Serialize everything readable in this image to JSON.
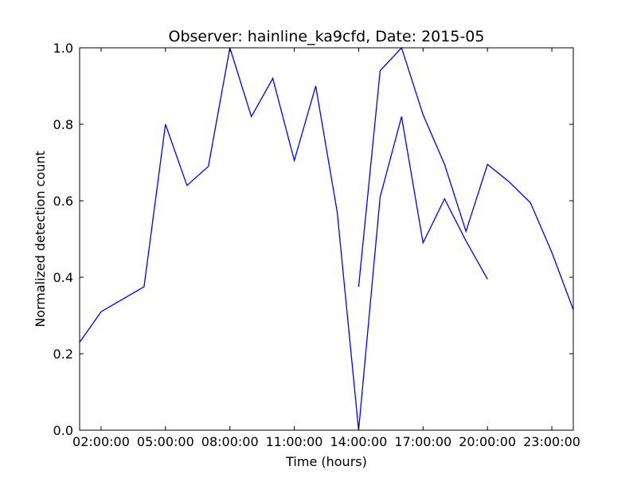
{
  "chart_data": {
    "type": "line",
    "title": "Observer: hainline_ka9cfd, Date: 2015-05",
    "xlabel": "Time (hours)",
    "ylabel": "Normalized detection count",
    "xlim": [
      1,
      24
    ],
    "ylim": [
      0,
      1
    ],
    "grid": false,
    "x_ticks": [
      {
        "value": 2,
        "label": "02:00:00"
      },
      {
        "value": 5,
        "label": "05:00:00"
      },
      {
        "value": 8,
        "label": "08:00:00"
      },
      {
        "value": 11,
        "label": "11:00:00"
      },
      {
        "value": 14,
        "label": "14:00:00"
      },
      {
        "value": 17,
        "label": "17:00:00"
      },
      {
        "value": 20,
        "label": "20:00:00"
      },
      {
        "value": 23,
        "label": "23:00:00"
      }
    ],
    "y_ticks": [
      {
        "value": 0,
        "label": "0.0"
      },
      {
        "value": 0.2,
        "label": "0.2"
      },
      {
        "value": 0.4,
        "label": "0.4"
      },
      {
        "value": 0.6,
        "label": "0.6"
      },
      {
        "value": 0.8,
        "label": "0.8"
      },
      {
        "value": 1.0,
        "label": "1.0"
      }
    ],
    "series": [
      {
        "color": "#0000ff",
        "x": [
          1,
          2,
          4,
          5,
          6,
          7,
          8,
          9,
          10,
          11,
          12,
          13,
          14,
          15,
          16,
          17,
          18,
          19,
          20,
          21,
          22,
          23,
          24
        ],
        "y": [
          0.23,
          0.31,
          0.375,
          0.8,
          0.64,
          0.69,
          1.0,
          0.82,
          0.92,
          0.705,
          0.9,
          0.57,
          0.0,
          0.61,
          0.82,
          0.49,
          0.605,
          0.495,
          0.395,
          null,
          null,
          null,
          null
        ]
      },
      {
        "color": "#0000ff",
        "x": [
          14,
          15,
          16,
          17,
          18,
          19,
          20,
          21,
          22,
          23,
          24
        ],
        "y": [
          0.375,
          0.94,
          1.0,
          0.825,
          0.695,
          0.52,
          0.695,
          0.65,
          0.595,
          0.465,
          0.315
        ]
      }
    ]
  }
}
